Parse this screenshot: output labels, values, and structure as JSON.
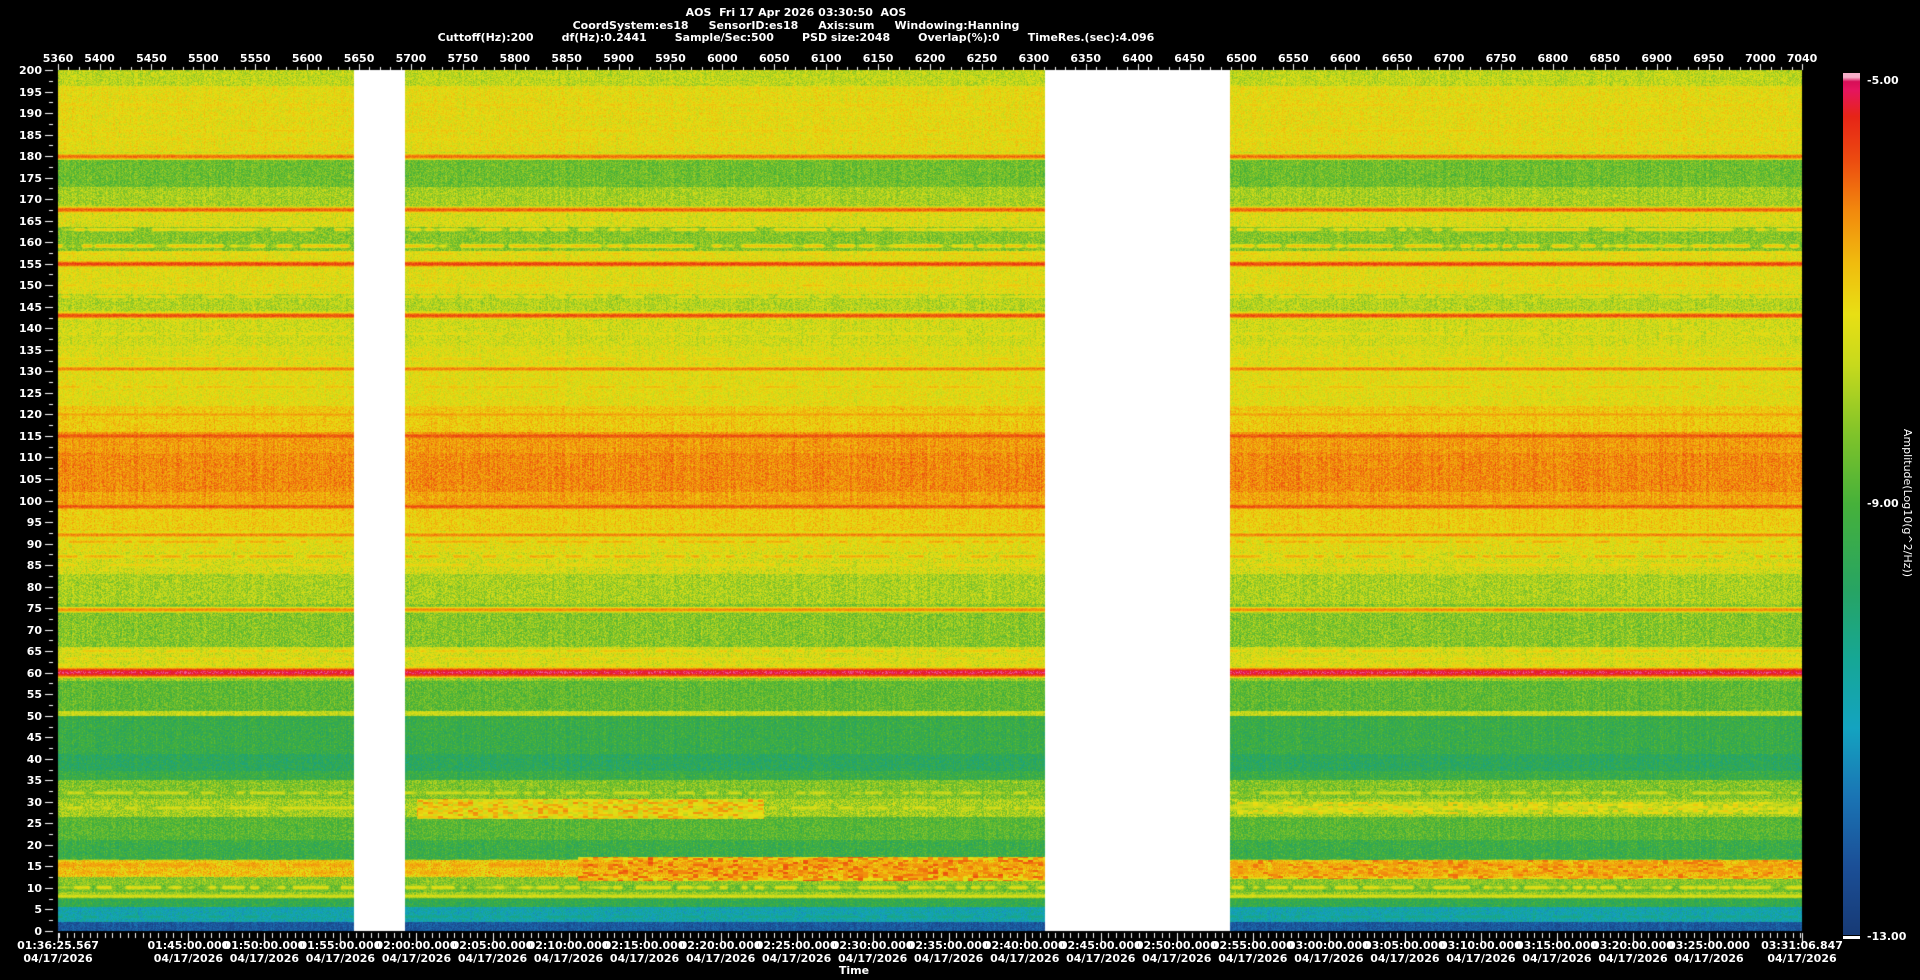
{
  "header": {
    "title": "AOS  Fri 17 Apr 2026 03:30:50  AOS",
    "line2": [
      "CoordSystem:es18",
      "SensorID:es18",
      "Axis:sum",
      "Windowing:Hanning"
    ],
    "line3": [
      "Cuttoff(Hz):200",
      "df(Hz):0.2441",
      "Sample/Sec:500",
      "PSD size:2048",
      "Overlap(%):0",
      "TimeRes.(sec):4.096"
    ]
  },
  "chart_data": {
    "type": "heatmap",
    "title": "AOS  Fri 17 Apr 2026 03:30:50  AOS",
    "x_axis_top": {
      "min": 5360,
      "max": 7040,
      "minor_step": 10,
      "labels": [
        5360,
        5400,
        5450,
        5500,
        5550,
        5600,
        5650,
        5700,
        5750,
        5800,
        5850,
        5900,
        5950,
        6000,
        6050,
        6100,
        6150,
        6200,
        6250,
        6300,
        6350,
        6400,
        6450,
        6500,
        6550,
        6600,
        6650,
        6700,
        6750,
        6800,
        6850,
        6900,
        6950,
        7000,
        7040
      ]
    },
    "y_axis_left": {
      "min": 0,
      "max": 200,
      "minor_step": 2.5,
      "label_step": 5,
      "labels": [
        200,
        195,
        190,
        185,
        180,
        175,
        170,
        165,
        160,
        155,
        150,
        145,
        140,
        135,
        130,
        125,
        120,
        115,
        110,
        105,
        100,
        95,
        90,
        85,
        80,
        75,
        70,
        65,
        60,
        55,
        50,
        45,
        40,
        35,
        30,
        25,
        20,
        15,
        10,
        5,
        0
      ]
    },
    "time_axis": {
      "title": "Time",
      "duration_sec": 6881.28,
      "labels": [
        {
          "time": "01:36:25.567",
          "date": "04/17/2026",
          "sec": 0
        },
        {
          "time": "01:45:00.000",
          "date": "04/17/2026",
          "sec": 514.433
        },
        {
          "time": "01:50:00.000",
          "date": "04/17/2026",
          "sec": 814.433
        },
        {
          "time": "01:55:00.000",
          "date": "04/17/2026",
          "sec": 1114.433
        },
        {
          "time": "02:00:00.000",
          "date": "04/17/2026",
          "sec": 1414.433
        },
        {
          "time": "02:05:00.000",
          "date": "04/17/2026",
          "sec": 1714.433
        },
        {
          "time": "02:10:00.000",
          "date": "04/17/2026",
          "sec": 2014.433
        },
        {
          "time": "02:15:00.000",
          "date": "04/17/2026",
          "sec": 2314.433
        },
        {
          "time": "02:20:00.000",
          "date": "04/17/2026",
          "sec": 2614.433
        },
        {
          "time": "02:25:00.000",
          "date": "04/17/2026",
          "sec": 2914.433
        },
        {
          "time": "02:30:00.000",
          "date": "04/17/2026",
          "sec": 3214.433
        },
        {
          "time": "02:35:00.000",
          "date": "04/17/2026",
          "sec": 3514.433
        },
        {
          "time": "02:40:00.000",
          "date": "04/17/2026",
          "sec": 3814.433
        },
        {
          "time": "02:45:00.000",
          "date": "04/17/2026",
          "sec": 4114.433
        },
        {
          "time": "02:50:00.000",
          "date": "04/17/2026",
          "sec": 4414.433
        },
        {
          "time": "02:55:00.000",
          "date": "04/17/2026",
          "sec": 4714.433
        },
        {
          "time": "03:00:00.000",
          "date": "04/17/2026",
          "sec": 5014.433
        },
        {
          "time": "03:05:00.000",
          "date": "04/17/2026",
          "sec": 5314.433
        },
        {
          "time": "03:10:00.000",
          "date": "04/17/2026",
          "sec": 5614.433
        },
        {
          "time": "03:15:00.000",
          "date": "04/17/2026",
          "sec": 5914.433
        },
        {
          "time": "03:20:00.000",
          "date": "04/17/2026",
          "sec": 6214.433
        },
        {
          "time": "03:25:00.000",
          "date": "04/17/2026",
          "sec": 6514.433
        },
        {
          "time": "03:31:06.847",
          "date": "04/17/2026",
          "sec": 6881.28
        }
      ]
    },
    "colorbar": {
      "title": "Amplitude(Log10(g^2/Hz))",
      "min": -13,
      "max": -5,
      "ticks": [
        {
          "label": "-5.00",
          "value": -5
        },
        {
          "label": "-9.00",
          "value": -9
        },
        {
          "label": "-13.00",
          "value": -13
        }
      ]
    },
    "data_gaps": [
      {
        "from": 5645,
        "to": 5694
      },
      {
        "from": 6311,
        "to": 6489
      }
    ],
    "palette": [
      [
        0.0,
        "#173a75"
      ],
      [
        0.08,
        "#1b4f97"
      ],
      [
        0.16,
        "#1a74b4"
      ],
      [
        0.24,
        "#14a3c0"
      ],
      [
        0.32,
        "#16a795"
      ],
      [
        0.4,
        "#27a463"
      ],
      [
        0.5,
        "#46b13a"
      ],
      [
        0.58,
        "#7fc32a"
      ],
      [
        0.66,
        "#c6d91d"
      ],
      [
        0.72,
        "#e8df14"
      ],
      [
        0.78,
        "#f0bb0e"
      ],
      [
        0.84,
        "#f2890d"
      ],
      [
        0.9,
        "#ec4a10"
      ],
      [
        0.95,
        "#e62417"
      ],
      [
        0.98,
        "#e5155e"
      ],
      [
        1.0,
        "#ef5e96"
      ]
    ],
    "bands": [
      [
        200,
        196.5,
        -7.75,
        0.5
      ],
      [
        196.5,
        181,
        -7.25,
        0.45
      ],
      [
        181,
        179.5,
        -7.6,
        0.4
      ],
      [
        179.5,
        173,
        -8.55,
        0.5
      ],
      [
        173,
        168,
        -8.0,
        0.5
      ],
      [
        168,
        163.5,
        -7.45,
        0.5
      ],
      [
        163.5,
        158,
        -8.3,
        0.5
      ],
      [
        158,
        148,
        -7.35,
        0.45
      ],
      [
        148,
        144,
        -7.85,
        0.5
      ],
      [
        144,
        136,
        -7.55,
        0.5
      ],
      [
        136,
        131,
        -7.4,
        0.45
      ],
      [
        131,
        122,
        -7.3,
        0.45
      ],
      [
        122,
        116,
        -6.95,
        0.45
      ],
      [
        116,
        111,
        -6.45,
        0.4
      ],
      [
        111,
        102,
        -6.3,
        0.4
      ],
      [
        102,
        98,
        -6.55,
        0.4
      ],
      [
        98,
        93,
        -7.0,
        0.45
      ],
      [
        93,
        88,
        -7.3,
        0.5
      ],
      [
        88,
        83,
        -7.5,
        0.55
      ],
      [
        83,
        76,
        -7.95,
        0.55
      ],
      [
        76,
        66,
        -8.3,
        0.55
      ],
      [
        66,
        61,
        -7.5,
        0.5
      ],
      [
        61,
        58,
        -8.15,
        0.5
      ],
      [
        58,
        51,
        -8.7,
        0.5
      ],
      [
        51,
        50,
        -7.7,
        0.4
      ],
      [
        50,
        41,
        -9.3,
        0.5
      ],
      [
        41,
        37,
        -9.65,
        0.5
      ],
      [
        37,
        35,
        -9.3,
        0.5
      ],
      [
        35,
        30.5,
        -8.35,
        0.55
      ],
      [
        30.5,
        26.5,
        -8.0,
        0.6
      ],
      [
        26.5,
        21,
        -8.8,
        0.5
      ],
      [
        21,
        16.5,
        -9.25,
        0.55
      ],
      [
        16.5,
        12.5,
        -6.95,
        0.65
      ],
      [
        12.5,
        10.5,
        -8.3,
        0.5
      ],
      [
        10.5,
        9,
        -8.55,
        0.5
      ],
      [
        9,
        7.5,
        -8.1,
        0.5
      ],
      [
        7.5,
        5.5,
        -9.4,
        0.5
      ],
      [
        5.5,
        2,
        -10.8,
        0.55
      ],
      [
        2,
        0,
        -12.2,
        0.4
      ]
    ],
    "tonals": [
      [
        192,
        -7.0,
        0.5,
        1
      ],
      [
        190,
        -7.1,
        0.4,
        1
      ],
      [
        186,
        -6.95,
        0.5,
        1
      ],
      [
        184,
        -7.1,
        0.4,
        1
      ],
      [
        180,
        -6.05,
        0.55,
        0
      ],
      [
        167.6,
        -5.95,
        0.55,
        0
      ],
      [
        163,
        -7.0,
        0.4,
        1
      ],
      [
        159.2,
        -6.85,
        0.45,
        1
      ],
      [
        157.4,
        -6.95,
        0.4,
        1
      ],
      [
        155,
        -5.7,
        0.55,
        0
      ],
      [
        150,
        -6.9,
        0.45,
        1
      ],
      [
        147.4,
        -7.05,
        0.4,
        1
      ],
      [
        143,
        -5.8,
        0.55,
        0
      ],
      [
        138.8,
        -7.15,
        0.4,
        1
      ],
      [
        133,
        -6.95,
        0.45,
        1
      ],
      [
        130.6,
        -6.2,
        0.5,
        0
      ],
      [
        126.4,
        -6.8,
        0.45,
        1
      ],
      [
        121.5,
        -6.95,
        0.4,
        1
      ],
      [
        120,
        -6.5,
        0.45,
        0
      ],
      [
        115,
        -5.85,
        0.6,
        0
      ],
      [
        98.6,
        -5.85,
        0.55,
        0
      ],
      [
        92,
        -6.25,
        0.5,
        0
      ],
      [
        90.4,
        -6.6,
        0.45,
        1
      ],
      [
        87,
        -6.6,
        0.5,
        1
      ],
      [
        85,
        -7.0,
        0.4,
        1
      ],
      [
        74.6,
        -6.3,
        0.5,
        0
      ],
      [
        65,
        -6.9,
        0.45,
        1
      ],
      [
        63.2,
        -7.0,
        0.4,
        1
      ],
      [
        61.8,
        -7.1,
        0.4,
        1
      ],
      [
        60,
        -5.15,
        0.8,
        0
      ],
      [
        50.5,
        -7.6,
        0.5,
        1
      ],
      [
        32,
        -7.6,
        0.5,
        1
      ],
      [
        28.5,
        -7.45,
        0.5,
        1
      ],
      [
        15.2,
        -6.55,
        0.9,
        1
      ],
      [
        13.5,
        -6.65,
        0.8,
        1
      ],
      [
        10,
        -7.3,
        0.5,
        1
      ],
      [
        8,
        -7.45,
        0.45,
        0
      ],
      [
        3.2,
        -10.3,
        0.5,
        1
      ]
    ],
    "patches": [
      [
        30.5,
        26,
        5705,
        6040,
        -7.0,
        0.8
      ],
      [
        30,
        27,
        6495,
        7040,
        -7.55,
        0.7
      ],
      [
        17,
        11.5,
        5860,
        6311,
        -6.6,
        0.85
      ],
      [
        16.5,
        12,
        6490,
        7040,
        -6.75,
        0.8
      ]
    ]
  }
}
